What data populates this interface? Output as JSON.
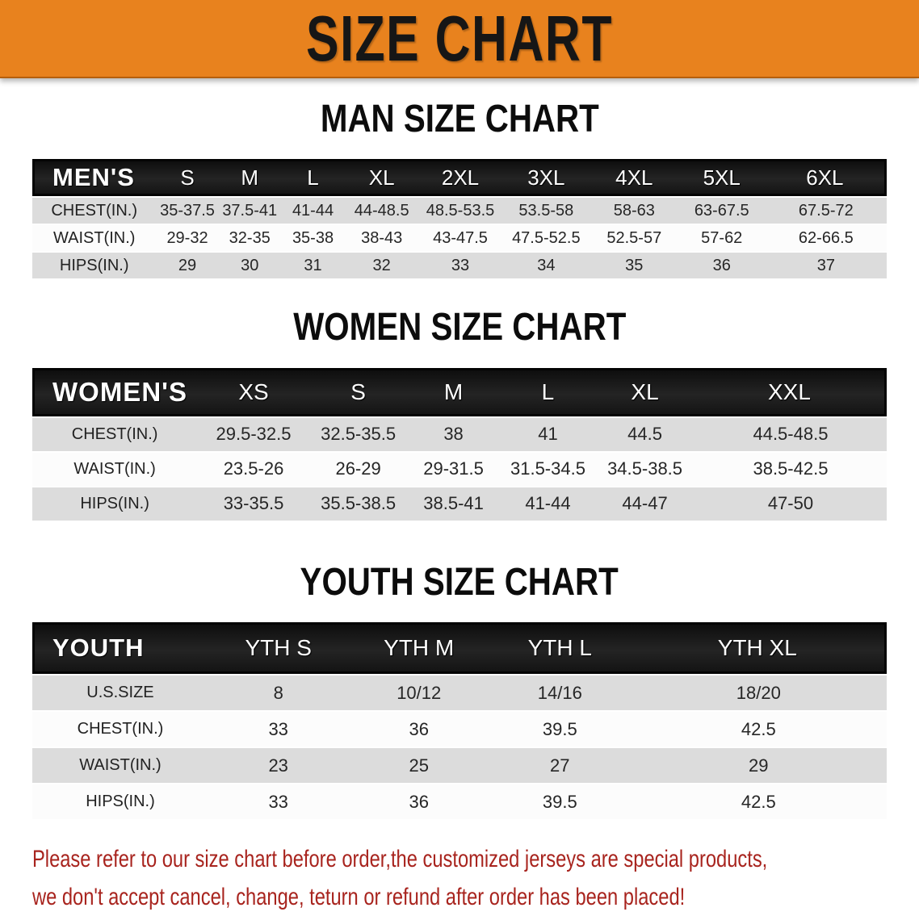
{
  "banner": {
    "title": "SIZE CHART",
    "background": "#e8821e",
    "text_color": "#161616"
  },
  "chart_data": [
    {
      "type": "table",
      "title": "MAN SIZE CHART",
      "corner_label": "MEN'S",
      "columns": [
        "S",
        "M",
        "L",
        "XL",
        "2XL",
        "3XL",
        "4XL",
        "5XL",
        "6XL"
      ],
      "rows": [
        {
          "label": "CHEST(IN.)",
          "values": [
            "35-37.5",
            "37.5-41",
            "41-44",
            "44-48.5",
            "48.5-53.5",
            "53.5-58",
            "58-63",
            "63-67.5",
            "67.5-72"
          ]
        },
        {
          "label": "WAIST(IN.)",
          "values": [
            "29-32",
            "32-35",
            "35-38",
            "38-43",
            "43-47.5",
            "47.5-52.5",
            "52.5-57",
            "57-62",
            "62-66.5"
          ]
        },
        {
          "label": "HIPS(IN.)",
          "values": [
            "29",
            "30",
            "31",
            "32",
            "33",
            "34",
            "35",
            "36",
            "37"
          ]
        }
      ]
    },
    {
      "type": "table",
      "title": "WOMEN SIZE CHART",
      "corner_label": "WOMEN'S",
      "columns": [
        "XS",
        "S",
        "M",
        "L",
        "XL",
        "XXL"
      ],
      "rows": [
        {
          "label": "CHEST(IN.)",
          "values": [
            "29.5-32.5",
            "32.5-35.5",
            "38",
            "41",
            "44.5",
            "44.5-48.5"
          ]
        },
        {
          "label": "WAIST(IN.)",
          "values": [
            "23.5-26",
            "26-29",
            "29-31.5",
            "31.5-34.5",
            "34.5-38.5",
            "38.5-42.5"
          ]
        },
        {
          "label": "HIPS(IN.)",
          "values": [
            "33-35.5",
            "35.5-38.5",
            "38.5-41",
            "41-44",
            "44-47",
            "47-50"
          ]
        }
      ]
    },
    {
      "type": "table",
      "title": "YOUTH SIZE CHART",
      "corner_label": "YOUTH",
      "columns": [
        "YTH S",
        "YTH M",
        "YTH L",
        "YTH XL"
      ],
      "rows": [
        {
          "label": "U.S.SIZE",
          "values": [
            "8",
            "10/12",
            "14/16",
            "18/20"
          ]
        },
        {
          "label": "CHEST(IN.)",
          "values": [
            "33",
            "36",
            "39.5",
            "42.5"
          ]
        },
        {
          "label": "WAIST(IN.)",
          "values": [
            "23",
            "25",
            "27",
            "29"
          ]
        },
        {
          "label": "HIPS(IN.)",
          "values": [
            "33",
            "36",
            "39.5",
            "42.5"
          ]
        }
      ]
    }
  ],
  "footer": {
    "line1": "Please refer to our size chart before order,the customized jerseys are special products,",
    "line2": "we don't accept cancel, change, teturn or refund after order has been placed!",
    "color": "#a8241e"
  }
}
